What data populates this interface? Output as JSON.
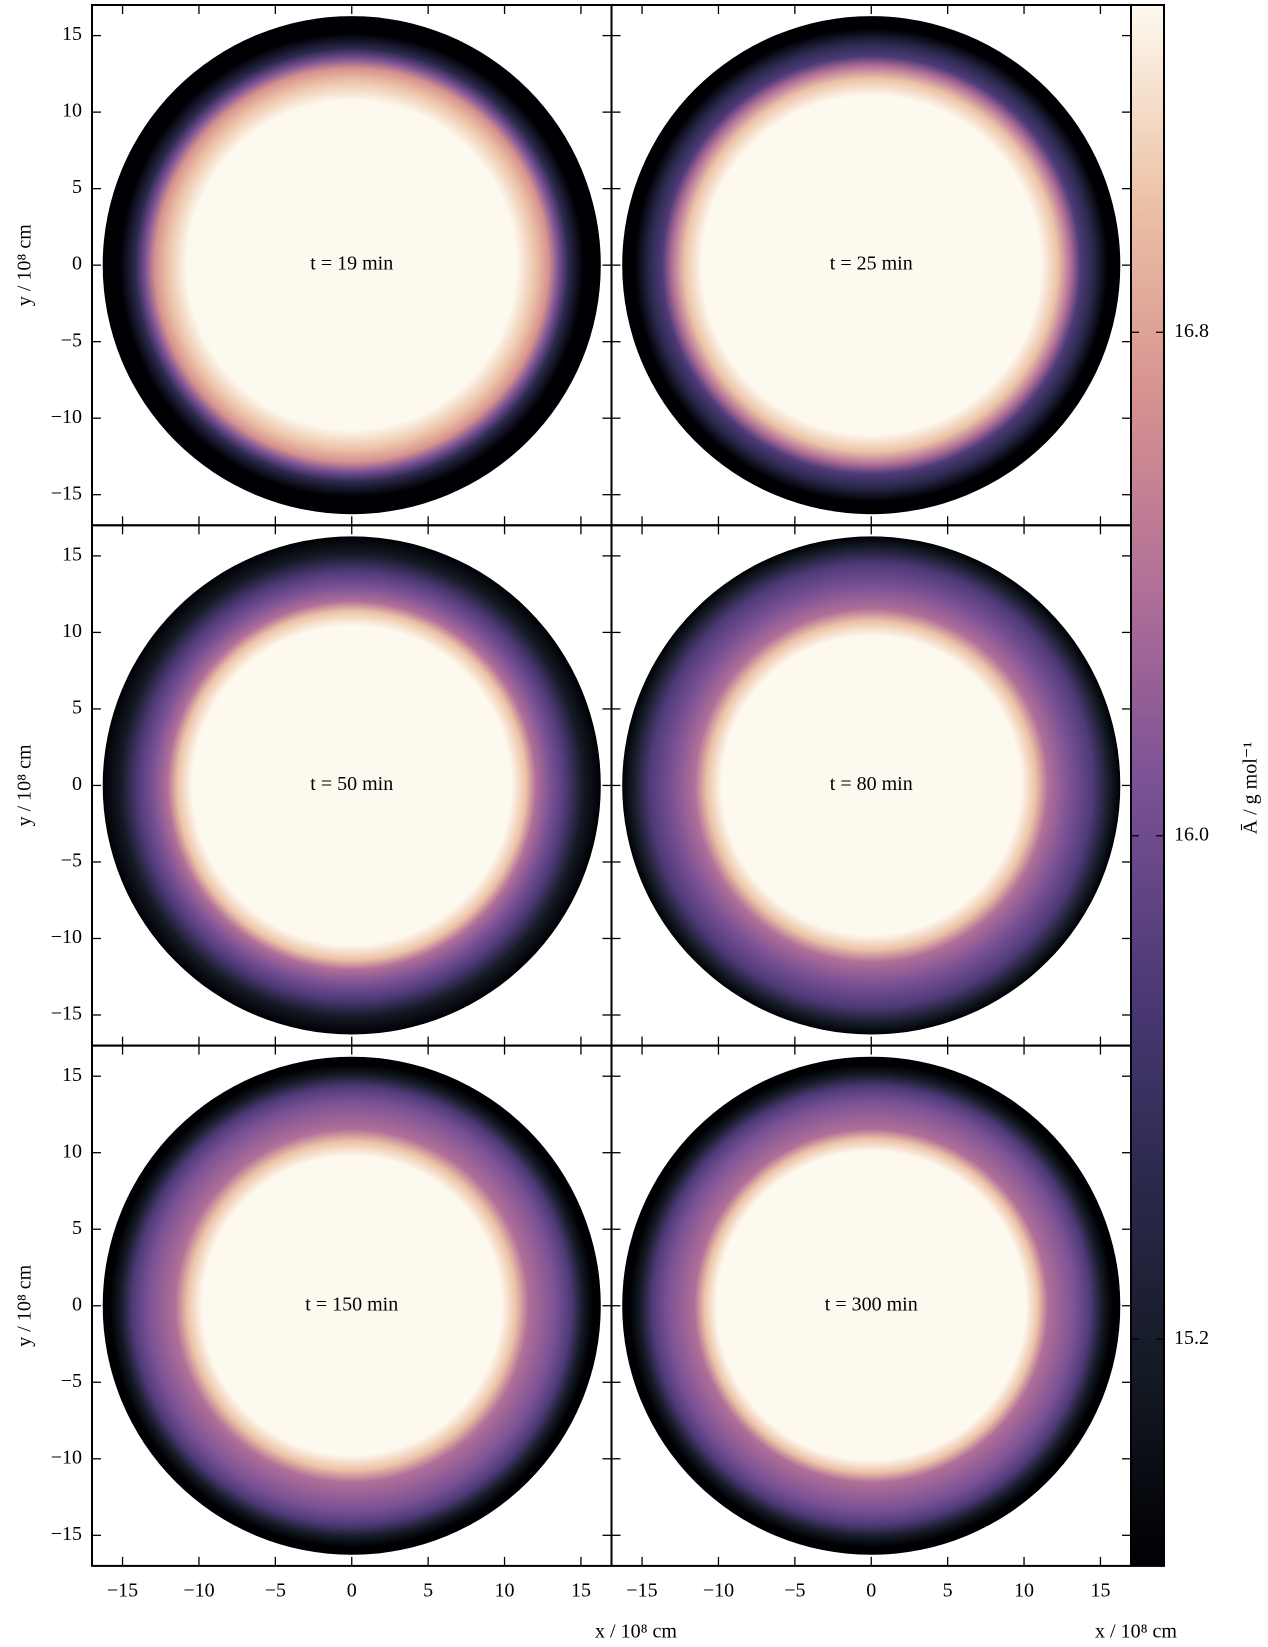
{
  "chart_data": {
    "type": "heatmap",
    "xlabel": "x / 10⁸ cm",
    "ylabel": "y / 10⁸ cm",
    "xlim": [
      -17,
      17
    ],
    "ylim": [
      -17,
      17
    ],
    "xticks": [
      {
        "value": -15,
        "label": "−15"
      },
      {
        "value": -10,
        "label": "−10"
      },
      {
        "value": -5,
        "label": "−5"
      },
      0,
      5,
      10,
      15
    ],
    "yticks": [
      {
        "value": -15,
        "label": "−15"
      },
      {
        "value": -10,
        "label": "−10"
      },
      {
        "value": -5,
        "label": "−5"
      },
      0,
      5,
      10,
      15
    ],
    "panels": [
      {
        "annotation": "t = 19 min"
      },
      {
        "annotation": "t = 25 min"
      },
      {
        "annotation": "t = 50 min"
      },
      {
        "annotation": "t = 80 min"
      },
      {
        "annotation": "t = 150 min"
      },
      {
        "annotation": "t = 300 min"
      }
    ],
    "colorbar": {
      "label": "Ā / g mol⁻¹",
      "lim": [
        14.84,
        17.32
      ],
      "ticks": [
        {
          "value": 15.2,
          "label": "15.2"
        },
        {
          "value": 16,
          "label": "16.0"
        },
        {
          "value": 16.8,
          "label": "16.8"
        }
      ]
    },
    "colormap": [
      "#000004",
      "#141a24",
      "#2b2a4e",
      "#4e3a78",
      "#7a5195",
      "#b06f98",
      "#d6928f",
      "#ecc2a6",
      "#fdf9ef"
    ]
  }
}
